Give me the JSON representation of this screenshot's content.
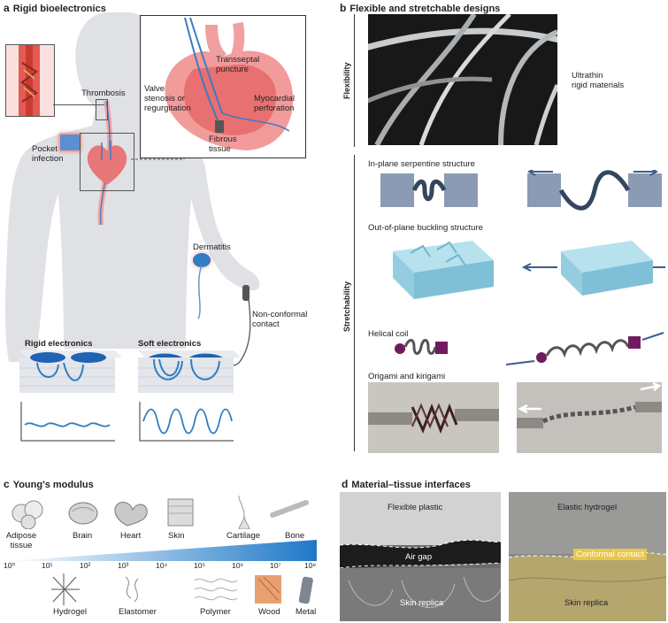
{
  "panel_a": {
    "letter": "a",
    "title": "Rigid bioelectronics",
    "labels": {
      "thrombosis": "Thrombosis",
      "pocket_infection_1": "Pocket",
      "pocket_infection_2": "infection",
      "transseptal_1": "Transseptal",
      "transseptal_2": "puncture",
      "valve_1": "Valve",
      "valve_2": "stenosis or",
      "valve_3": "regurgitation",
      "myocardial_1": "Myocardial",
      "myocardial_2": "perforation",
      "fibrous_1": "Fibrous",
      "fibrous_2": "tissue",
      "dermatitis": "Dermatitis",
      "nonconformal_1": "Non-conformal",
      "nonconformal_2": "contact"
    },
    "rigid_electronics": "Rigid electronics",
    "soft_electronics": "Soft electronics"
  },
  "panel_b": {
    "letter": "b",
    "title": "Flexible and stretchable designs",
    "flexibility": "Flexibility",
    "stretchability": "Stretchability",
    "ultrathin_1": "Ultrathin",
    "ultrathin_2": "rigid materials",
    "serpentine": "In-plane serpentine structure",
    "buckling": "Out-of-plane buckling structure",
    "helical": "Helical coil",
    "origami": "Origami and kirigami"
  },
  "panel_c": {
    "letter": "c",
    "title": "Young's modulus",
    "tissues": [
      "Adipose",
      "tissue",
      "Brain",
      "Heart",
      "Skin",
      "Cartilage",
      "Bone"
    ],
    "ticks": [
      "10⁰",
      "10¹",
      "10²",
      "10³",
      "10⁴",
      "10⁵",
      "10⁶",
      "10⁷",
      "10⁸"
    ],
    "materials": [
      "Hydrogel",
      "Elastomer",
      "Polymer",
      "Wood",
      "Metal"
    ]
  },
  "panel_d": {
    "letter": "d",
    "title": "Material–tissue interfaces",
    "flexible_plastic": "Flexible plastic",
    "air_gap": "Air gap",
    "skin_replica_left": "Skin replica",
    "elastic_hydrogel": "Elastic hydrogel",
    "conformal_contact": "Conformal contact",
    "skin_replica_right": "Skin replica"
  },
  "colors": {
    "body": "#dfe1e4",
    "heart": "#e8777a",
    "accent_blue": "#2f7fc1",
    "arrow_blue": "#3c5e87",
    "chip": "#8c9bb4",
    "buckle": "#9fd2e2"
  }
}
